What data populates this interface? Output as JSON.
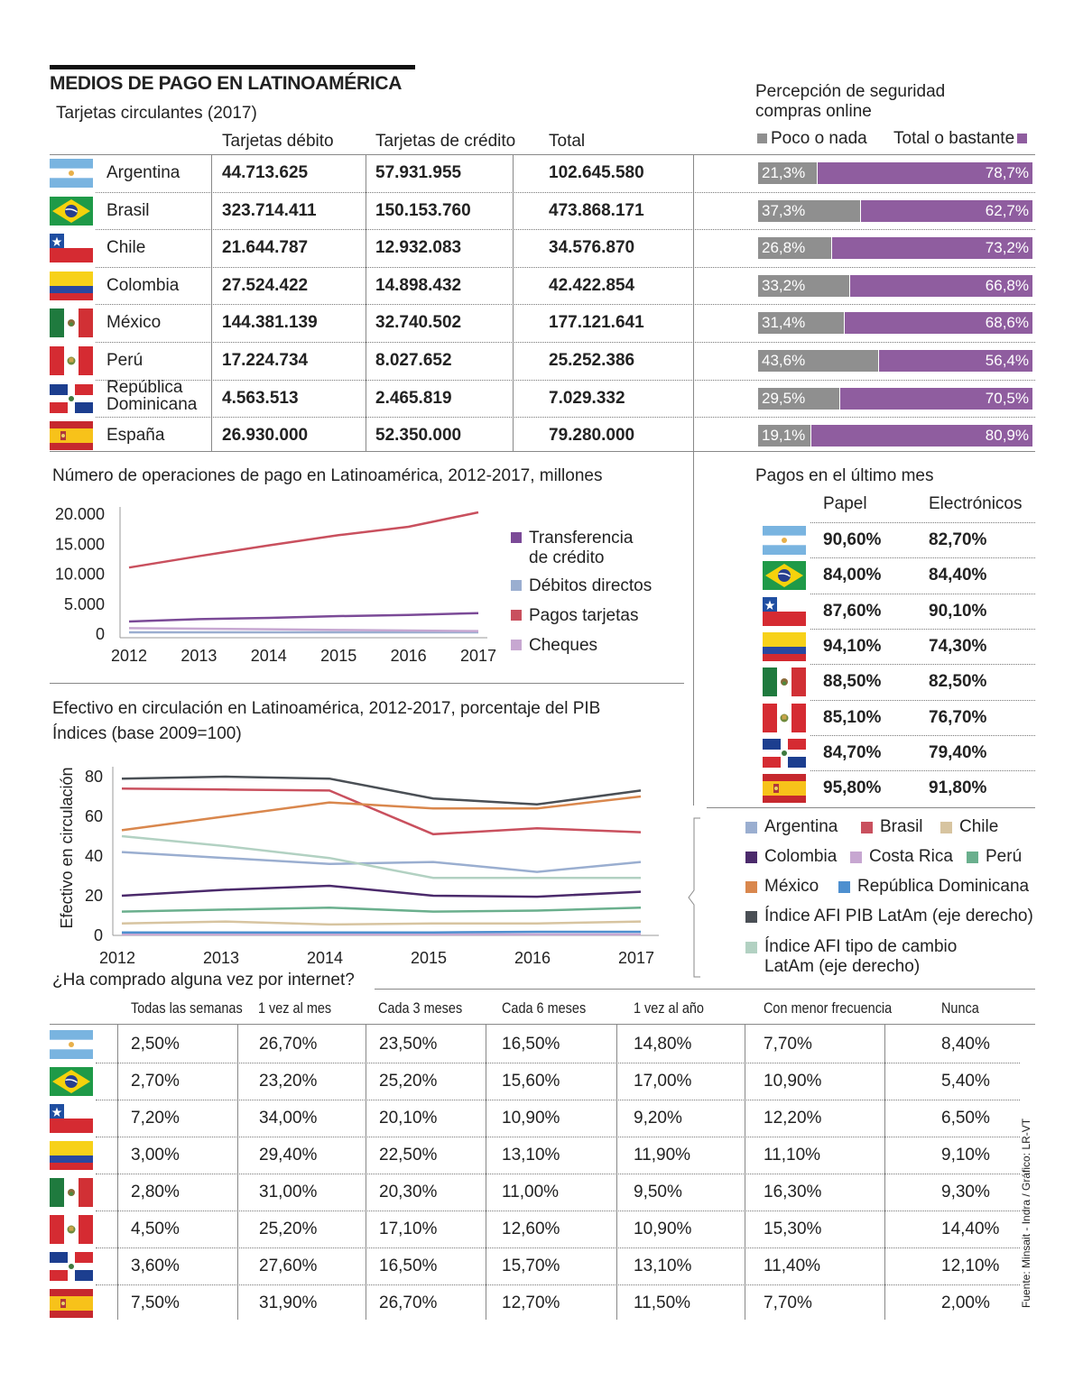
{
  "title": "MEDIOS DE PAGO EN LATINOAMÉRICA",
  "cards": {
    "subtitle": "Tarjetas circulantes (2017)",
    "headers": [
      "Tarjetas débito",
      "Tarjetas de crédito",
      "Total"
    ],
    "rows": [
      {
        "country": "Argentina",
        "flag": "flag-argentina",
        "debit": "44.713.625",
        "credit": "57.931.955",
        "total": "102.645.580"
      },
      {
        "country": "Brasil",
        "flag": "flag-brasil",
        "debit": "323.714.411",
        "credit": "150.153.760",
        "total": "473.868.171"
      },
      {
        "country": "Chile",
        "flag": "flag-chile",
        "debit": "21.644.787",
        "credit": "12.932.083",
        "total": "34.576.870"
      },
      {
        "country": "Colombia",
        "flag": "flag-colombia",
        "debit": "27.524.422",
        "credit": "14.898.432",
        "total": "42.422.854"
      },
      {
        "country": "México",
        "flag": "flag-mexico",
        "debit": "144.381.139",
        "credit": "32.740.502",
        "total": "177.121.641"
      },
      {
        "country": "Perú",
        "flag": "flag-peru",
        "debit": "17.224.734",
        "credit": "8.027.652",
        "total": "25.252.386"
      },
      {
        "country": "República Dominicana",
        "flag": "flag-dominicana",
        "debit": "4.563.513",
        "credit": "2.465.819",
        "total": "7.029.332"
      },
      {
        "country": "España",
        "flag": "flag-espana",
        "debit": "26.930.000",
        "credit": "52.350.000",
        "total": "79.280.000"
      }
    ]
  },
  "security": {
    "title_line1": "Percepción de seguridad",
    "title_line2": "compras online",
    "legend_low": "Poco o nada",
    "legend_high": "Total o bastante",
    "color_low": "#8f8f8f",
    "color_high": "#8f5d9f",
    "values": [
      {
        "low": 21.3,
        "high": 78.7,
        "low_label": "21,3%",
        "high_label": "78,7%"
      },
      {
        "low": 37.3,
        "high": 62.7,
        "low_label": "37,3%",
        "high_label": "62,7%"
      },
      {
        "low": 26.8,
        "high": 73.2,
        "low_label": "26,8%",
        "high_label": "73,2%"
      },
      {
        "low": 33.2,
        "high": 66.8,
        "low_label": "33,2%",
        "high_label": "66,8%"
      },
      {
        "low": 31.4,
        "high": 68.6,
        "low_label": "31,4%",
        "high_label": "68,6%"
      },
      {
        "low": 43.6,
        "high": 56.4,
        "low_label": "43,6%",
        "high_label": "56,4%"
      },
      {
        "low": 29.5,
        "high": 70.5,
        "low_label": "29,5%",
        "high_label": "70,5%"
      },
      {
        "low": 19.1,
        "high": 80.9,
        "low_label": "19,1%",
        "high_label": "80,9%"
      }
    ]
  },
  "payments": {
    "title": "Pagos en el último mes",
    "headers": [
      "Papel",
      "Electrónicos"
    ],
    "rows": [
      {
        "flag": "flag-argentina",
        "paper": "90,60%",
        "electronic": "82,70%"
      },
      {
        "flag": "flag-brasil",
        "paper": "84,00%",
        "electronic": "84,40%"
      },
      {
        "flag": "flag-chile",
        "paper": "87,60%",
        "electronic": "90,10%"
      },
      {
        "flag": "flag-colombia",
        "paper": "94,10%",
        "electronic": "74,30%"
      },
      {
        "flag": "flag-mexico",
        "paper": "88,50%",
        "electronic": "82,50%"
      },
      {
        "flag": "flag-peru",
        "paper": "85,10%",
        "electronic": "76,70%"
      },
      {
        "flag": "flag-dominicana",
        "paper": "84,70%",
        "electronic": "79,40%"
      },
      {
        "flag": "flag-espana",
        "paper": "95,80%",
        "electronic": "91,80%"
      }
    ]
  },
  "chart_data": [
    {
      "type": "line",
      "title": "Número de operaciones de pago en Latinoamérica, 2012-2017, millones",
      "x": [
        "2012",
        "2013",
        "2014",
        "2015",
        "2016",
        "2017"
      ],
      "ylim": [
        0,
        20000
      ],
      "yticks": [
        "20.000",
        "15.000",
        "10.000",
        "5.000",
        "0"
      ],
      "ytick_values": [
        20000,
        15000,
        10000,
        5000,
        0
      ],
      "series": [
        {
          "name": "Transferencia de crédito",
          "name_line1": "Transferencia",
          "name_line2": "de crédito",
          "color": "#7b4a97",
          "values": [
            2100,
            2500,
            2700,
            3000,
            3200,
            3500
          ]
        },
        {
          "name": "Débitos directos",
          "color": "#9aaed0",
          "values": [
            300,
            300,
            300,
            300,
            300,
            300
          ]
        },
        {
          "name": "Pagos tarjetas",
          "color": "#c9505e",
          "values": [
            11100,
            13000,
            14800,
            16500,
            17900,
            20300
          ]
        },
        {
          "name": "Cheques",
          "color": "#c7a7d1",
          "values": [
            1000,
            900,
            800,
            700,
            600,
            500
          ]
        }
      ]
    },
    {
      "type": "line",
      "title": "Efectivo en circulación en Latinoamérica, 2012-2017, porcentaje del PIB",
      "subtitle": "Índices  (base 2009=100)",
      "ylabel": "Efectivo en circulación",
      "x": [
        "2012",
        "2013",
        "2014",
        "2015",
        "2016",
        "2017"
      ],
      "ylim": [
        0,
        85
      ],
      "yticks": [
        "80",
        "60",
        "40",
        "20",
        "0"
      ],
      "ytick_values": [
        80,
        60,
        40,
        20,
        0
      ],
      "series": [
        {
          "name": "Argentina",
          "color": "#9aaed0",
          "values": [
            42,
            39,
            36,
            37,
            32,
            37
          ]
        },
        {
          "name": "Brasil",
          "color": "#c9505e",
          "values": [
            74,
            73.5,
            73,
            51,
            54,
            52
          ]
        },
        {
          "name": "Chile",
          "color": "#d7c4a0",
          "values": [
            6,
            7,
            5.5,
            6,
            6,
            7
          ]
        },
        {
          "name": "Colombia",
          "color": "#4b2a6b",
          "values": [
            20,
            23,
            25,
            20,
            19.5,
            22
          ]
        },
        {
          "name": "Costa Rica",
          "color": "#c7a7d1",
          "values": [
            0.5,
            0.5,
            0.5,
            0.5,
            0.5,
            0.5
          ]
        },
        {
          "name": "Perú",
          "color": "#6aaf8d",
          "values": [
            12,
            13,
            14,
            12,
            12.5,
            14
          ]
        },
        {
          "name": "México",
          "color": "#d9874d",
          "values": [
            53,
            60,
            67,
            64,
            64,
            70
          ]
        },
        {
          "name": "República Dominicana",
          "color": "#4d8fcf",
          "values": [
            1.5,
            1.5,
            1.5,
            1.5,
            1.8,
            1.8
          ]
        },
        {
          "name": "Índice AFI PIB LatAm (eje derecho)",
          "color": "#4a4f55",
          "values": [
            79,
            80,
            79,
            69,
            66,
            73
          ]
        },
        {
          "name": "Índice AFI tipo de cambio LatAm (eje derecho)",
          "name_line1": "Índice AFI tipo de cambio",
          "name_line2": "LatAm (eje derecho)",
          "color": "#b2d1c2",
          "values": [
            50,
            45,
            39,
            29,
            29,
            29
          ]
        }
      ]
    }
  ],
  "purchases": {
    "title": "¿Ha comprado alguna vez por internet?",
    "headers": [
      "Todas las semanas",
      "1 vez al mes",
      "Cada 3 meses",
      "Cada 6 meses",
      "1 vez al año",
      "Con menor frecuencia",
      "Nunca"
    ],
    "rows": [
      {
        "flag": "flag-argentina",
        "values": [
          "2,50%",
          "26,70%",
          "23,50%",
          "16,50%",
          "14,80%",
          "7,70%",
          "8,40%"
        ]
      },
      {
        "flag": "flag-brasil",
        "values": [
          "2,70%",
          "23,20%",
          "25,20%",
          "15,60%",
          "17,00%",
          "10,90%",
          "5,40%"
        ]
      },
      {
        "flag": "flag-chile",
        "values": [
          "7,20%",
          "34,00%",
          "20,10%",
          "10,90%",
          "9,20%",
          "12,20%",
          "6,50%"
        ]
      },
      {
        "flag": "flag-colombia",
        "values": [
          "3,00%",
          "29,40%",
          "22,50%",
          "13,10%",
          "11,90%",
          "11,10%",
          "9,10%"
        ]
      },
      {
        "flag": "flag-mexico",
        "values": [
          "2,80%",
          "31,00%",
          "20,30%",
          "11,00%",
          "9,50%",
          "16,30%",
          "9,30%"
        ]
      },
      {
        "flag": "flag-peru",
        "values": [
          "4,50%",
          "25,20%",
          "17,10%",
          "12,60%",
          "10,90%",
          "15,30%",
          "14,40%"
        ]
      },
      {
        "flag": "flag-dominicana",
        "values": [
          "3,60%",
          "27,60%",
          "16,50%",
          "15,70%",
          "13,10%",
          "11,40%",
          "12,10%"
        ]
      },
      {
        "flag": "flag-espana",
        "values": [
          "7,50%",
          "31,90%",
          "26,70%",
          "12,70%",
          "11,50%",
          "7,70%",
          "2,00%"
        ]
      }
    ]
  },
  "source": "Fuente: Minsait - Indra / Gráfico: LR-VT"
}
